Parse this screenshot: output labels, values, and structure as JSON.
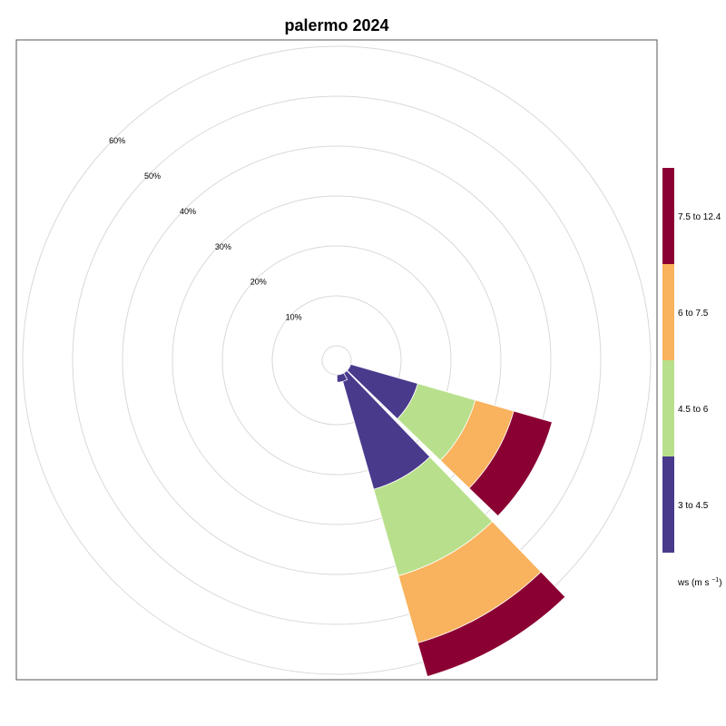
{
  "chart_data": {
    "type": "windrose",
    "title": "palermo 2024",
    "radial_ticks": [
      10,
      20,
      30,
      40,
      50,
      60
    ],
    "radial_tick_suffix": "%",
    "radial_max": 65,
    "legend": {
      "title_prefix": "ws (m s",
      "title_sup": "−1",
      "title_suffix": ")",
      "entries": [
        {
          "label": "3 to 4.5",
          "color": "#4a3a8c"
        },
        {
          "label": "4.5 to 6",
          "color": "#b8e08c"
        },
        {
          "label": "6 to 7.5",
          "color": "#f9b25d"
        },
        {
          "label": "7.5 to 12.4",
          "color": "#8b0033"
        }
      ]
    },
    "sectors": [
      {
        "direction_deg": 120,
        "values": [
          14,
          12,
          8,
          8
        ]
      },
      {
        "direction_deg": 150,
        "values": [
          24,
          18,
          14,
          7
        ]
      },
      {
        "direction_deg": 165,
        "values": [
          1.5,
          0,
          0,
          0
        ]
      }
    ]
  }
}
